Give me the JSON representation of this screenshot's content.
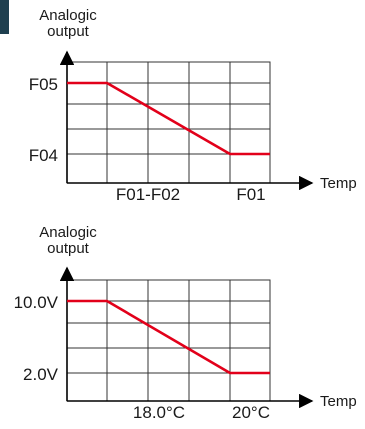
{
  "colors": {
    "curve": "#e2001a",
    "grid": "#333333",
    "axis": "#000000",
    "side_mark": "#1f3f4f"
  },
  "diagrams": [
    {
      "y_axis_label_line1": "Analogic",
      "y_axis_label_line2": "output",
      "x_axis_label": "Temp",
      "y_high_label": "F05",
      "y_low_label": "F04",
      "x_low_label": "F01-F02",
      "x_high_label": "F01"
    },
    {
      "y_axis_label_line1": "Analogic",
      "y_axis_label_line2": "output",
      "x_axis_label": "Temp",
      "y_high_label": "10.0V",
      "y_low_label": "2.0V",
      "x_low_label": "18.0°C",
      "x_high_label": "20°C"
    }
  ]
}
